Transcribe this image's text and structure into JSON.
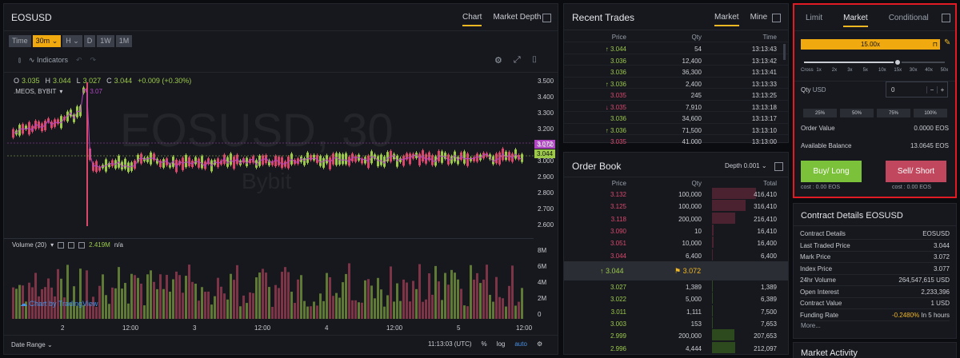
{
  "chart_panel": {
    "symbol": "EOSUSD",
    "tabs": [
      "Chart",
      "Market Depth"
    ],
    "timeframes": [
      "Time",
      "30m",
      "H",
      "D",
      "1W",
      "1M"
    ],
    "indicators_label": "Indicators",
    "ohlc": {
      "o_label": "O",
      "o": "3.035",
      "h_label": "H",
      "h": "3.044",
      "l_label": "L",
      "l": "3.027",
      "c_label": "C",
      "c": "3.044",
      "change": "+0.009 (+0.30%)"
    },
    "study": ".MEOS, BYBIT",
    "study_value": "3.07",
    "watermark": "EOSUSD, 30",
    "watermark_sub": "Bybit",
    "price_axis": [
      "3.500",
      "3.400",
      "3.300",
      "3.200",
      "3.100",
      "3.000",
      "2.900",
      "2.800",
      "2.700",
      "2.600"
    ],
    "price_tags": {
      "mark": "3.072",
      "last": "3.044"
    },
    "volume_label": "Volume (20)",
    "volume_value": "2.419M",
    "volume_na": "n/a",
    "volume_axis": [
      "8M",
      "6M",
      "4M",
      "2M",
      "0"
    ],
    "time_axis": [
      "2",
      "12:00",
      "3",
      "12:00",
      "4",
      "12:00",
      "5",
      "12:00"
    ],
    "tradingview": "Chart by TradingView",
    "date_range": "Date Range",
    "clock": "11:13:03 (UTC)",
    "pct": "%",
    "log": "log",
    "auto": "auto",
    "colors": {
      "up": "#9cc94a",
      "down": "#d9486b",
      "accent": "#f2b824",
      "ma": "#b146c2"
    }
  },
  "recent_trades": {
    "title": "Recent Trades",
    "tabs": [
      "Market",
      "Mine"
    ],
    "headers": [
      "Price",
      "Qty",
      "Time"
    ],
    "rows": [
      {
        "price": "3.044",
        "qty": "54",
        "time": "13:13:43",
        "side": "up",
        "arrow": "↑"
      },
      {
        "price": "3.036",
        "qty": "12,400",
        "time": "13:13:42",
        "side": "up",
        "arrow": ""
      },
      {
        "price": "3.036",
        "qty": "36,300",
        "time": "13:13:41",
        "side": "up",
        "arrow": ""
      },
      {
        "price": "3.036",
        "qty": "2,400",
        "time": "13:13:33",
        "side": "up",
        "arrow": "↑"
      },
      {
        "price": "3.035",
        "qty": "245",
        "time": "13:13:25",
        "side": "down",
        "arrow": ""
      },
      {
        "price": "3.035",
        "qty": "7,910",
        "time": "13:13:18",
        "side": "down",
        "arrow": "↓"
      },
      {
        "price": "3.036",
        "qty": "34,600",
        "time": "13:13:17",
        "side": "up",
        "arrow": ""
      },
      {
        "price": "3.036",
        "qty": "71,500",
        "time": "13:13:10",
        "side": "up",
        "arrow": "↑"
      },
      {
        "price": "3.035",
        "qty": "41,000",
        "time": "13:13:00",
        "side": "down",
        "arrow": ""
      }
    ]
  },
  "order_book": {
    "title": "Order Book",
    "depth": "Depth 0.001",
    "headers": [
      "Price",
      "Qty",
      "Total"
    ],
    "asks": [
      {
        "price": "3.132",
        "qty": "100,000",
        "total": "416,410",
        "depth": 0.5
      },
      {
        "price": "3.125",
        "qty": "100,000",
        "total": "316,410",
        "depth": 0.38
      },
      {
        "price": "3.118",
        "qty": "200,000",
        "total": "216,410",
        "depth": 0.26
      },
      {
        "price": "3.090",
        "qty": "10",
        "total": "16,410",
        "depth": 0.02
      },
      {
        "price": "3.051",
        "qty": "10,000",
        "total": "16,400",
        "depth": 0.02
      },
      {
        "price": "3.044",
        "qty": "6,400",
        "total": "6,400",
        "depth": 0.01
      }
    ],
    "last_price": "3.044",
    "mark_price": "3.072",
    "bids": [
      {
        "price": "3.027",
        "qty": "1,389",
        "total": "1,389",
        "depth": 0.01
      },
      {
        "price": "3.022",
        "qty": "5,000",
        "total": "6,389",
        "depth": 0.01
      },
      {
        "price": "3.011",
        "qty": "1,111",
        "total": "7,500",
        "depth": 0.01
      },
      {
        "price": "3.003",
        "qty": "153",
        "total": "7,653",
        "depth": 0.01
      },
      {
        "price": "2.999",
        "qty": "200,000",
        "total": "207,653",
        "depth": 0.25
      },
      {
        "price": "2.996",
        "qty": "4,444",
        "total": "212,097",
        "depth": 0.26
      }
    ]
  },
  "order_entry": {
    "tabs": [
      "Limit",
      "Market",
      "Conditional"
    ],
    "leverage": "15.00x",
    "leverage_marks": [
      "Cross",
      "1x",
      "2x",
      "3x",
      "5x",
      "10x",
      "15x",
      "30x",
      "40x",
      "50x"
    ],
    "leverage_selected_index": 6,
    "qty_label": "Qty",
    "qty_unit": "USD",
    "qty_value": "0",
    "percent_buttons": [
      "25%",
      "50%",
      "75%",
      "100%"
    ],
    "order_value_label": "Order Value",
    "order_value": "0.0000 EOS",
    "balance_label": "Available Balance",
    "balance": "13.0645 EOS",
    "buy_label": "Buy/ Long",
    "sell_label": "Sell/ Short",
    "buy_cost": "cost : 0.00 EOS",
    "sell_cost": "cost : 0.00 EOS",
    "colors": {
      "buy": "#7cc13a",
      "sell": "#c0475d",
      "highlight": "#e01b24"
    }
  },
  "contract_details": {
    "title": "Contract Details EOSUSD",
    "rows": [
      {
        "label": "Contract Details",
        "value": "EOSUSD"
      },
      {
        "label": "Last Traded Price",
        "value": "3.044"
      },
      {
        "label": "Mark Price",
        "value": "3.072"
      },
      {
        "label": "Index Price",
        "value": "3.077"
      },
      {
        "label": "24hr Volume",
        "value": "264,547,615 USD"
      },
      {
        "label": "Open Interest",
        "value": "2,233,396"
      },
      {
        "label": "Contract Value",
        "value": "1 USD"
      },
      {
        "label": "Funding Rate",
        "value": "-0.2480%",
        "suffix": "In 5 hours"
      }
    ],
    "more": "More..."
  },
  "market_activity": {
    "title": "Market Activity"
  }
}
